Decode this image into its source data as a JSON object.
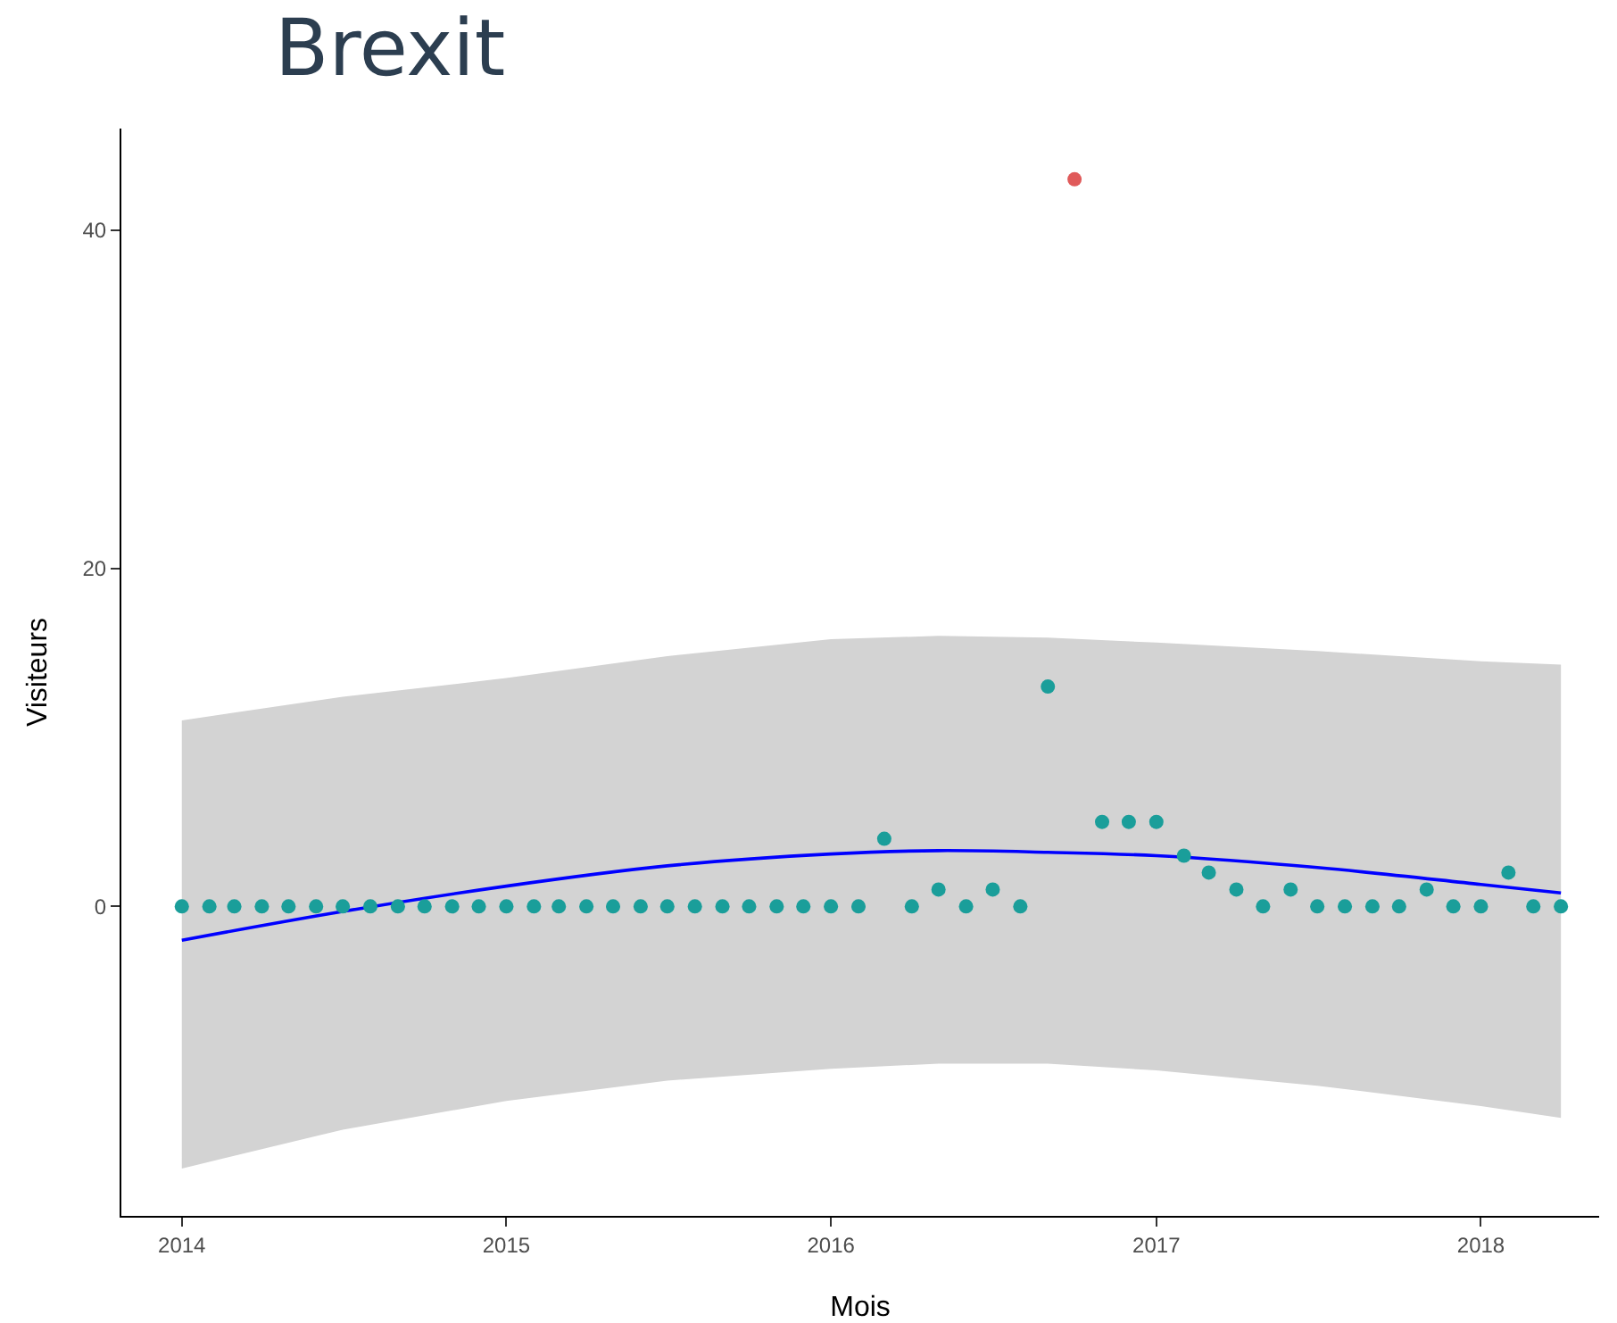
{
  "chart_data": {
    "type": "scatter",
    "title": "Brexit",
    "xlabel": "Mois",
    "ylabel": "Visiteurs",
    "marker": "circle",
    "grid": false,
    "xlim": [
      "2013-10-25",
      "2018-05-14"
    ],
    "xticks": [
      "2014",
      "2015",
      "2016",
      "2017",
      "2018"
    ],
    "ylim": [
      -18.3,
      46
    ],
    "yticks": [
      0,
      20,
      40
    ],
    "series": [
      {
        "type": "line",
        "marker": "none",
        "color": "#0000ff",
        "x": [
          "2014-01",
          "2014-07",
          "2015-01",
          "2015-07",
          "2016-01",
          "2016-05",
          "2016-09",
          "2017-01",
          "2017-07",
          "2018-01",
          "2018-04"
        ],
        "values": [
          -2,
          -0.3,
          1.2,
          2.4,
          3.1,
          3.3,
          3.2,
          3,
          2.3,
          1.3,
          0.8
        ],
        "lower": [
          -15.5,
          -13.2,
          -11.5,
          -10.3,
          -9.6,
          -9.3,
          -9.3,
          -9.7,
          -10.6,
          -11.8,
          -12.5
        ],
        "upper": [
          11,
          12.4,
          13.5,
          14.8,
          15.8,
          16,
          15.9,
          15.6,
          15.1,
          14.5,
          14.3
        ]
      },
      {
        "color": "#1a9e9a",
        "x": [
          "2014-01",
          "2014-02",
          "2014-03",
          "2014-04",
          "2014-05",
          "2014-06",
          "2014-07",
          "2014-08",
          "2014-09",
          "2014-10",
          "2014-11",
          "2014-12",
          "2015-01",
          "2015-02",
          "2015-03",
          "2015-04",
          "2015-05",
          "2015-06",
          "2015-07",
          "2015-08",
          "2015-09",
          "2015-10",
          "2015-11",
          "2015-12",
          "2016-01",
          "2016-02",
          "2016-03",
          "2016-04",
          "2016-05",
          "2016-06",
          "2016-07",
          "2016-08",
          "2016-09",
          "2016-11",
          "2016-12",
          "2017-01",
          "2017-02",
          "2017-03",
          "2017-04",
          "2017-05",
          "2017-06",
          "2017-07",
          "2017-08",
          "2017-09",
          "2017-10",
          "2017-11",
          "2017-12",
          "2018-01",
          "2018-02",
          "2018-03",
          "2018-04"
        ],
        "values": [
          0,
          0,
          0,
          0,
          0,
          0,
          0,
          0,
          0,
          0,
          0,
          0,
          0,
          0,
          0,
          0,
          0,
          0,
          0,
          0,
          0,
          0,
          0,
          0,
          0,
          0,
          4,
          0,
          1,
          0,
          1,
          0,
          13,
          5,
          5,
          5,
          3,
          2,
          1,
          0,
          1,
          0,
          0,
          0,
          0,
          1,
          0,
          0,
          2,
          0,
          0
        ]
      },
      {
        "color": "#e05a5a",
        "x": [
          "2016-10"
        ],
        "values": [
          43
        ]
      }
    ]
  }
}
